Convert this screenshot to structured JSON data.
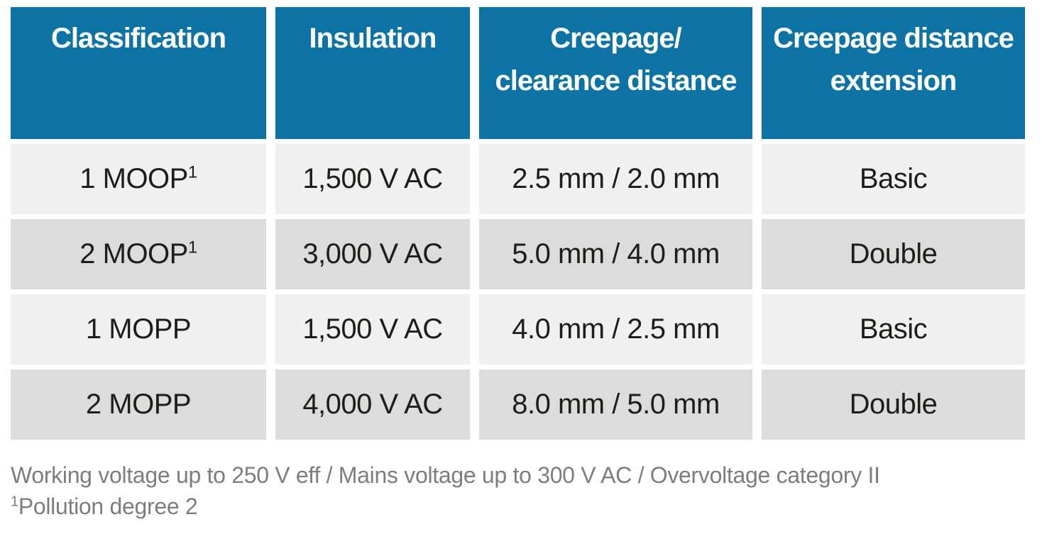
{
  "colors": {
    "page_bg": "#ffffff",
    "header_bg": "#0d73a5",
    "header_text": "#ffffff",
    "row_light_bg": "#f0f0f0",
    "row_dark_bg": "#dcdcdc",
    "cell_text": "#1d1d1b",
    "footnote_text": "#7d7d7d"
  },
  "table": {
    "headers": [
      {
        "line1": "Classification",
        "line2": ""
      },
      {
        "line1": "Insulation",
        "line2": ""
      },
      {
        "line1": "Creepage/",
        "line2": "clearance distance"
      },
      {
        "line1": "Creepage distance",
        "line2": "extension"
      }
    ],
    "rows": [
      {
        "classification": "1 MOOP",
        "sup": "1",
        "insulation": "1,500 V AC",
        "creepage_clearance": "2.5 mm / 2.0 mm",
        "extension": "Basic"
      },
      {
        "classification": "2 MOOP",
        "sup": "1",
        "insulation": "3,000 V AC",
        "creepage_clearance": "5.0 mm / 4.0 mm",
        "extension": "Double"
      },
      {
        "classification": "1 MOPP",
        "sup": "",
        "insulation": "1,500 V AC",
        "creepage_clearance": "4.0 mm / 2.5 mm",
        "extension": "Basic"
      },
      {
        "classification": "2 MOPP",
        "sup": "",
        "insulation": "4,000 V AC",
        "creepage_clearance": "8.0 mm / 5.0 mm",
        "extension": "Double"
      }
    ]
  },
  "footnotes": {
    "line1": "Working voltage up to 250 V eff / Mains voltage up to 300 V AC / Overvoltage category II",
    "line2_sup": "1",
    "line2_text": "Pollution degree 2"
  },
  "chart_data": {
    "type": "table",
    "title": "",
    "columns": [
      "Classification",
      "Insulation",
      "Creepage/clearance distance",
      "Creepage distance extension"
    ],
    "rows": [
      [
        "1 MOOP¹",
        "1,500 V AC",
        "2.5 mm / 2.0 mm",
        "Basic"
      ],
      [
        "2 MOOP¹",
        "3,000 V AC",
        "5.0 mm / 4.0 mm",
        "Double"
      ],
      [
        "1 MOPP",
        "1,500 V AC",
        "4.0 mm / 2.5 mm",
        "Basic"
      ],
      [
        "2 MOPP",
        "4,000 V AC",
        "8.0 mm / 5.0 mm",
        "Double"
      ]
    ],
    "notes": [
      "Working voltage up to 250 V eff / Mains voltage up to 300 V AC / Overvoltage category II",
      "¹Pollution degree 2"
    ]
  }
}
